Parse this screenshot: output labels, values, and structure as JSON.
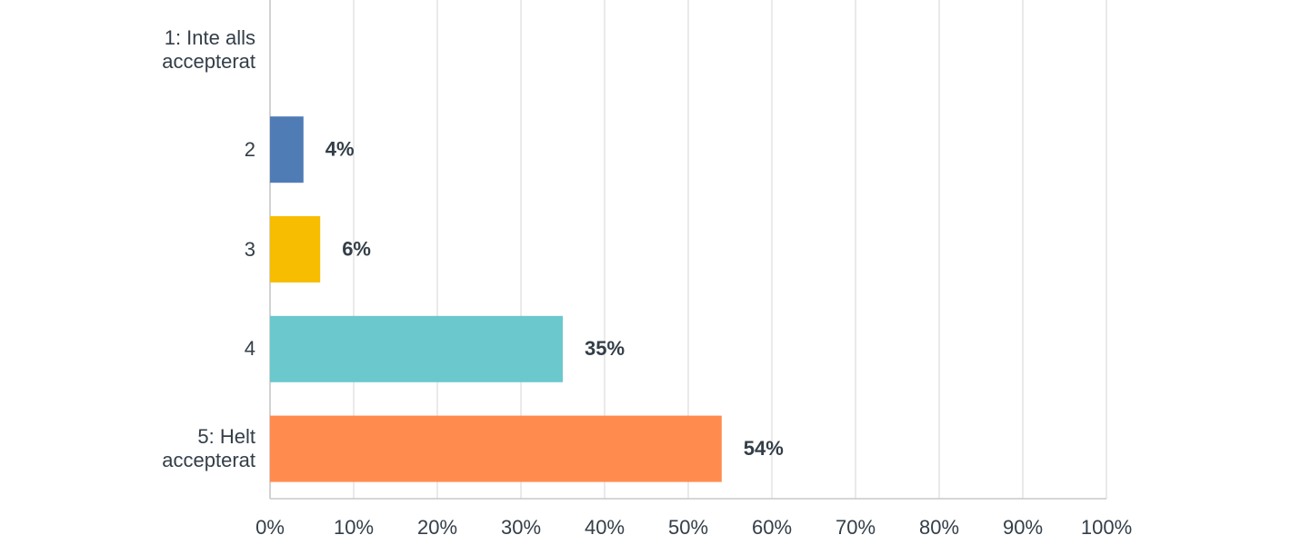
{
  "chart_data": {
    "type": "barh",
    "categories": [
      "1: Inte alls accepterat",
      "2",
      "3",
      "4",
      "5: Helt accepterat"
    ],
    "values": [
      0,
      4,
      6,
      35,
      54
    ],
    "value_labels": [
      null,
      "4%",
      "6%",
      "35%",
      "54%"
    ],
    "colors": [
      "#507cb6",
      "#507cb6",
      "#f7bd00",
      "#6bc8cd",
      "#ff8b4f"
    ],
    "xlim": [
      0,
      100
    ],
    "xticks": [
      {
        "value": 0,
        "label": "0%"
      },
      {
        "value": 10,
        "label": "10%"
      },
      {
        "value": 20,
        "label": "20%"
      },
      {
        "value": 30,
        "label": "30%"
      },
      {
        "value": 40,
        "label": "40%"
      },
      {
        "value": 50,
        "label": "50%"
      },
      {
        "value": 60,
        "label": "60%"
      },
      {
        "value": 70,
        "label": "70%"
      },
      {
        "value": 80,
        "label": "80%"
      },
      {
        "value": 90,
        "label": "90%"
      },
      {
        "value": 100,
        "label": "100%"
      }
    ],
    "grid": true
  }
}
